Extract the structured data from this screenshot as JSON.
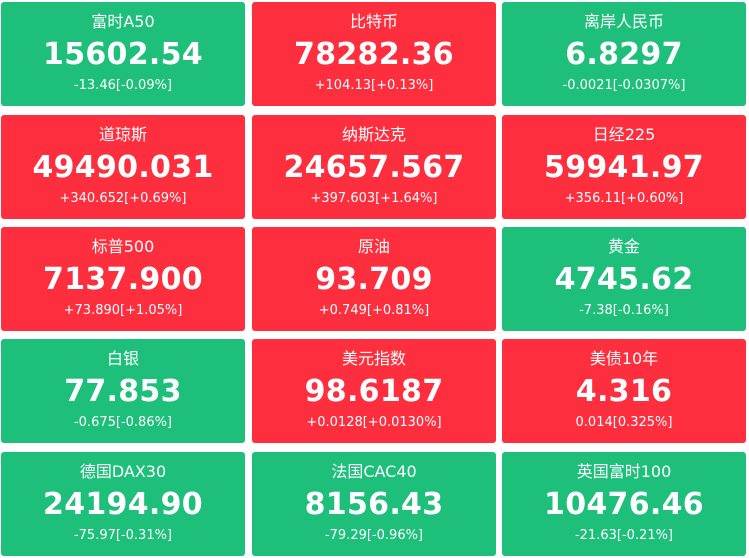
{
  "colors": {
    "up": "#fd2f3f",
    "down": "#1dbf7b",
    "text": "#ffffff"
  },
  "tiles": [
    {
      "name": "富时A50",
      "price": "15602.54",
      "change": "-13.46[-0.09%]",
      "trend": "down"
    },
    {
      "name": "比特币",
      "price": "78282.36",
      "change": "+104.13[+0.13%]",
      "trend": "up"
    },
    {
      "name": "离岸人民币",
      "price": "6.8297",
      "change": "-0.0021[-0.0307%]",
      "trend": "down"
    },
    {
      "name": "道琼斯",
      "price": "49490.031",
      "change": "+340.652[+0.69%]",
      "trend": "up"
    },
    {
      "name": "纳斯达克",
      "price": "24657.567",
      "change": "+397.603[+1.64%]",
      "trend": "up"
    },
    {
      "name": "日经225",
      "price": "59941.97",
      "change": "+356.11[+0.60%]",
      "trend": "up"
    },
    {
      "name": "标普500",
      "price": "7137.900",
      "change": "+73.890[+1.05%]",
      "trend": "up"
    },
    {
      "name": "原油",
      "price": "93.709",
      "change": "+0.749[+0.81%]",
      "trend": "up"
    },
    {
      "name": "黄金",
      "price": "4745.62",
      "change": "-7.38[-0.16%]",
      "trend": "down"
    },
    {
      "name": "白银",
      "price": "77.853",
      "change": "-0.675[-0.86%]",
      "trend": "down"
    },
    {
      "name": "美元指数",
      "price": "98.6187",
      "change": "+0.0128[+0.0130%]",
      "trend": "up"
    },
    {
      "name": "美债10年",
      "price": "4.316",
      "change": "0.014[0.325%]",
      "trend": "up"
    },
    {
      "name": "德国DAX30",
      "price": "24194.90",
      "change": "-75.97[-0.31%]",
      "trend": "down"
    },
    {
      "name": "法国CAC40",
      "price": "8156.43",
      "change": "-79.29[-0.96%]",
      "trend": "down"
    },
    {
      "name": "英国富时100",
      "price": "10476.46",
      "change": "-21.63[-0.21%]",
      "trend": "down"
    }
  ]
}
